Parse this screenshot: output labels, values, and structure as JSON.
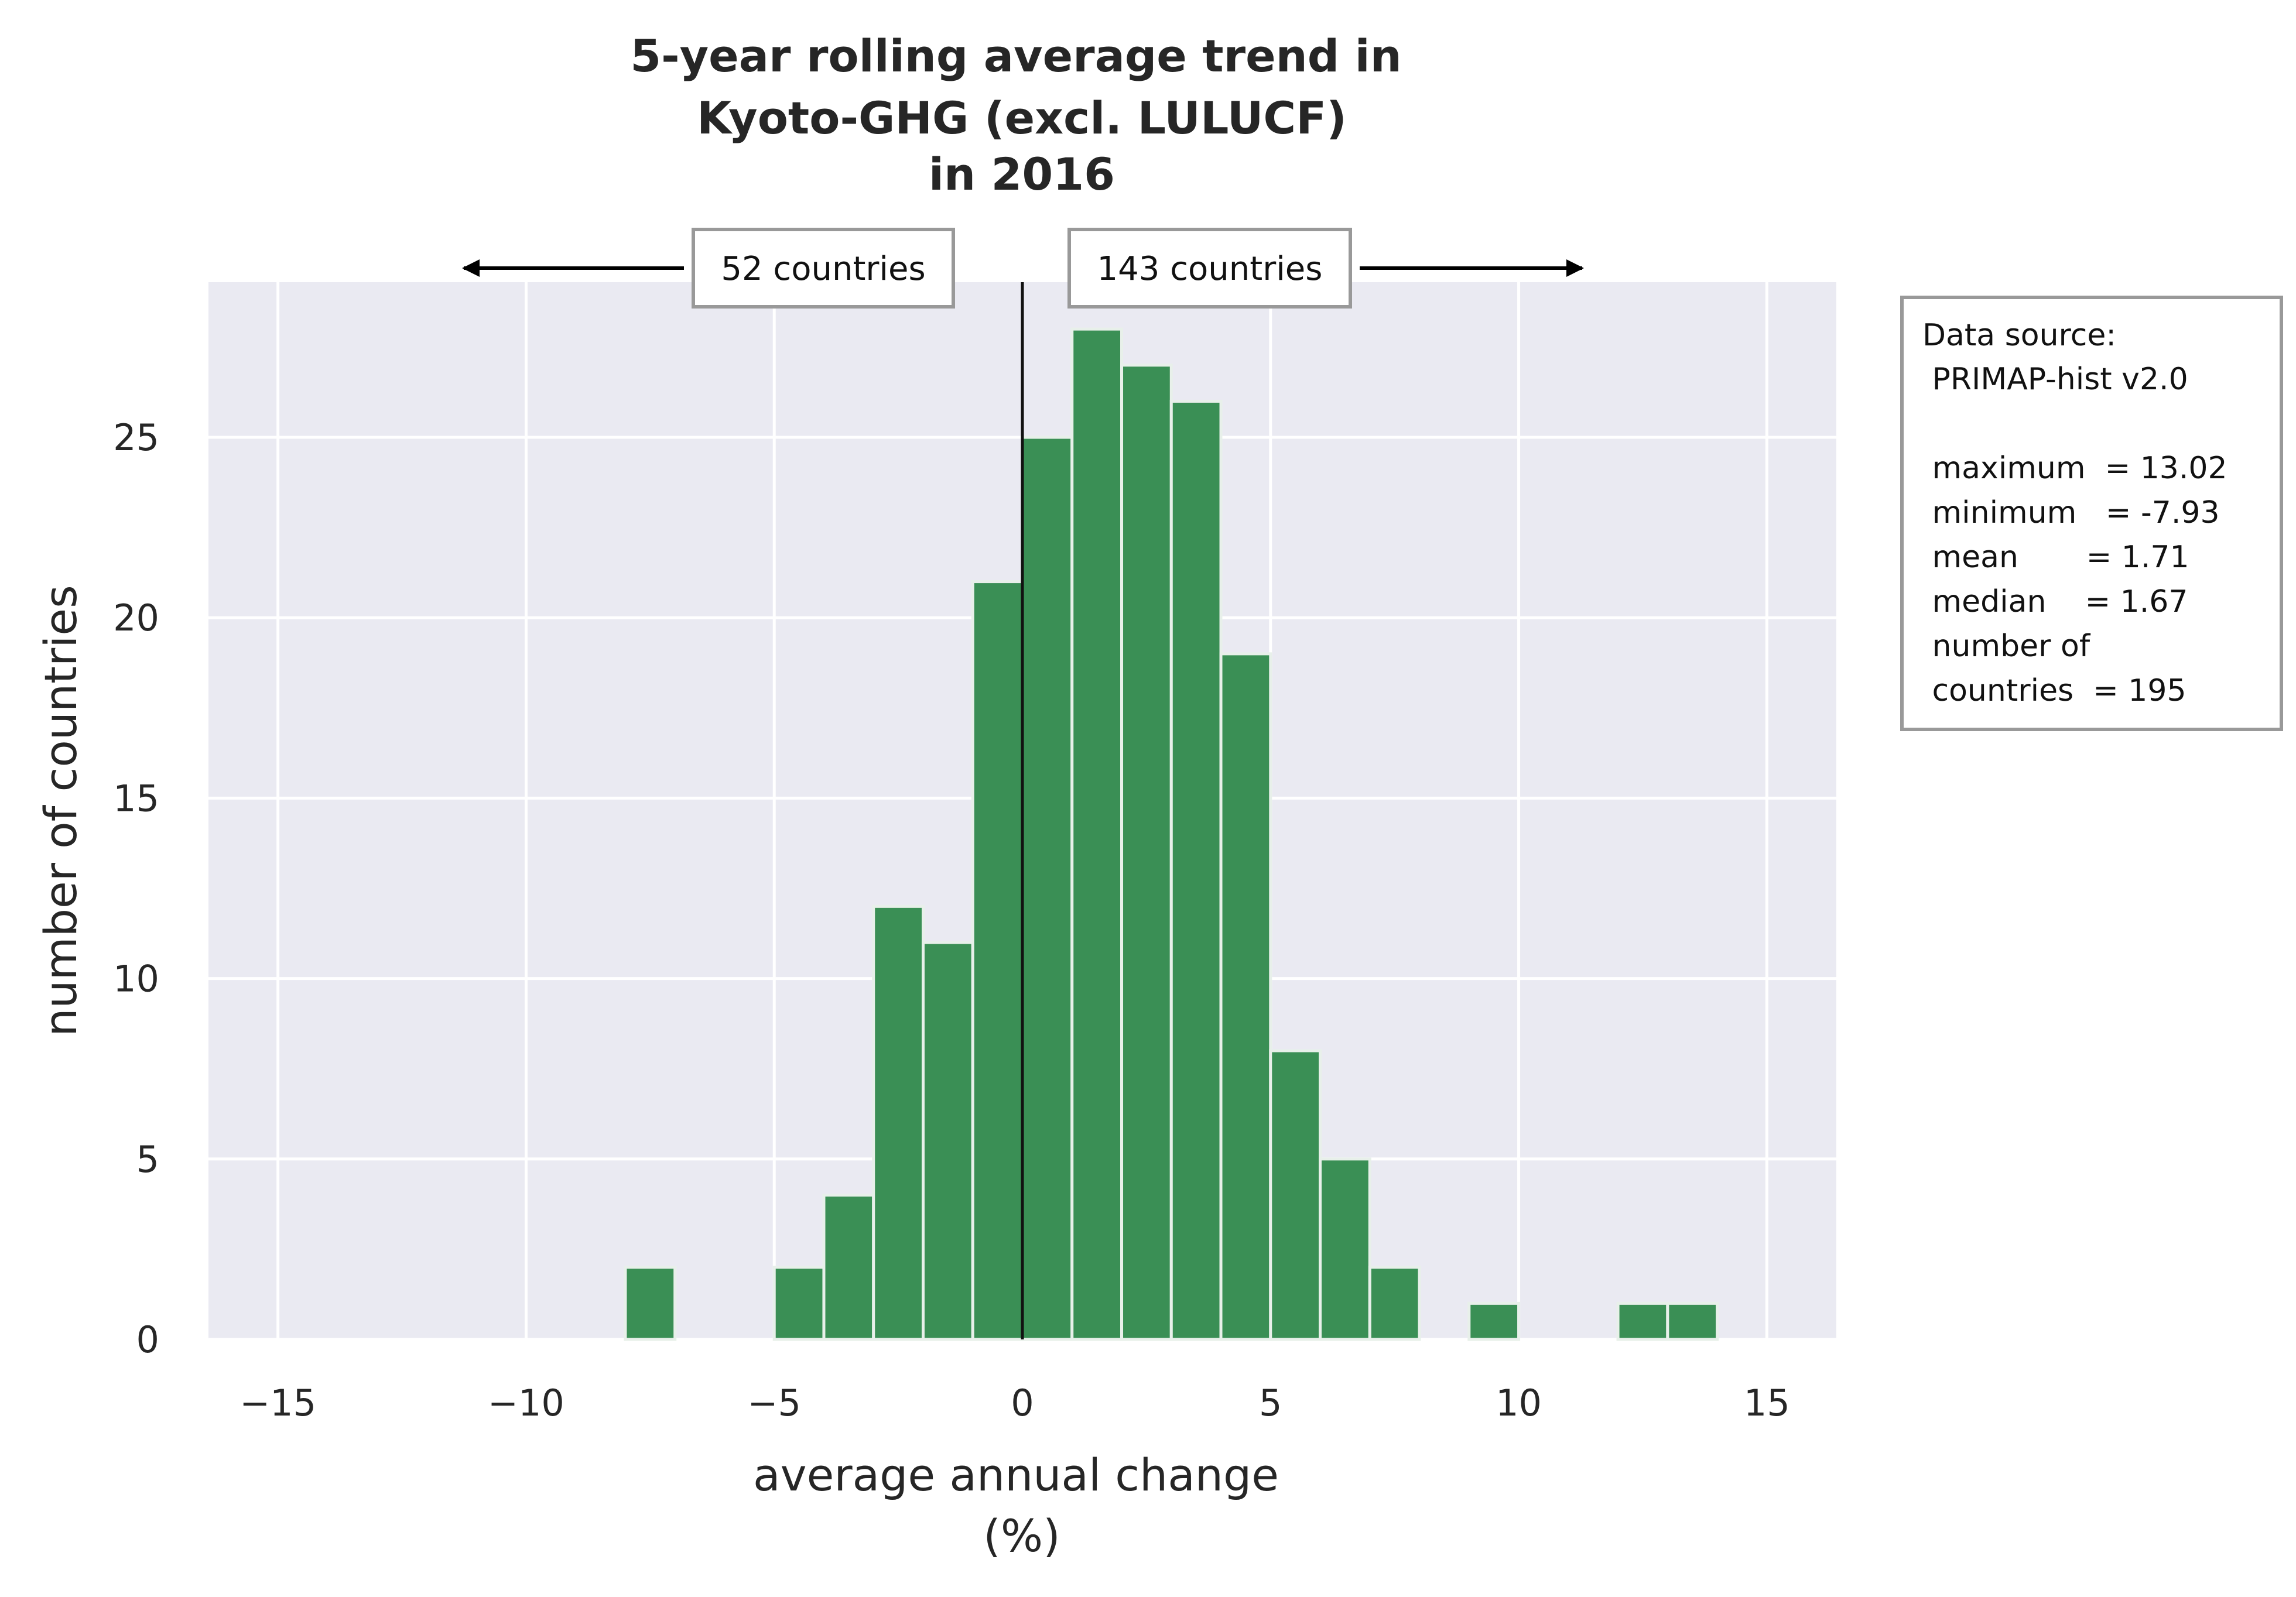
{
  "chart_data": {
    "type": "bar",
    "title": [
      "5-year rolling average trend in",
      "Kyoto-GHG (excl. LULUCF)",
      "in 2016"
    ],
    "xlabel": [
      "average annual change",
      "(%)"
    ],
    "ylabel": "number of countries",
    "xlim": [
      -16.4,
      16.4
    ],
    "ylim": [
      0,
      29.3
    ],
    "xticks": [
      {
        "value": -15,
        "label": "−15"
      },
      {
        "value": -10,
        "label": "−10"
      },
      {
        "value": -5,
        "label": "−5"
      },
      {
        "value": 0,
        "label": "0"
      },
      {
        "value": 5,
        "label": "5"
      },
      {
        "value": 10,
        "label": "10"
      },
      {
        "value": 15,
        "label": "15"
      }
    ],
    "yticks": [
      {
        "value": 0,
        "label": "0"
      },
      {
        "value": 5,
        "label": "5"
      },
      {
        "value": 10,
        "label": "10"
      },
      {
        "value": 15,
        "label": "15"
      },
      {
        "value": 20,
        "label": "20"
      },
      {
        "value": 25,
        "label": "25"
      }
    ],
    "grid": true,
    "bin_width": 1,
    "bins": [
      {
        "start": -8,
        "count": 2
      },
      {
        "start": -5,
        "count": 2
      },
      {
        "start": -4,
        "count": 4
      },
      {
        "start": -3,
        "count": 12
      },
      {
        "start": -2,
        "count": 11
      },
      {
        "start": -1,
        "count": 21
      },
      {
        "start": 0,
        "count": 25
      },
      {
        "start": 1,
        "count": 28
      },
      {
        "start": 2,
        "count": 27
      },
      {
        "start": 3,
        "count": 26
      },
      {
        "start": 4,
        "count": 19
      },
      {
        "start": 5,
        "count": 8
      },
      {
        "start": 6,
        "count": 5
      },
      {
        "start": 7,
        "count": 2
      },
      {
        "start": 9,
        "count": 1
      },
      {
        "start": 12,
        "count": 1
      },
      {
        "start": 13,
        "count": 1
      }
    ],
    "zero_line": 0,
    "annotations": {
      "left_count": "52 countries",
      "right_count": "143 countries"
    },
    "info_box": [
      "Data source:",
      " PRIMAP-hist v2.0",
      "",
      " maximum  = 13.02",
      " minimum   = -7.93",
      " mean       = 1.71",
      " median    = 1.67",
      " number of",
      " countries  = 195"
    ],
    "colors": {
      "bar": "#3a8f55",
      "bar_edge": "#e8f0ea",
      "background": "#eaeaf2",
      "grid": "#ffffff",
      "zero_line": "#111111"
    }
  }
}
